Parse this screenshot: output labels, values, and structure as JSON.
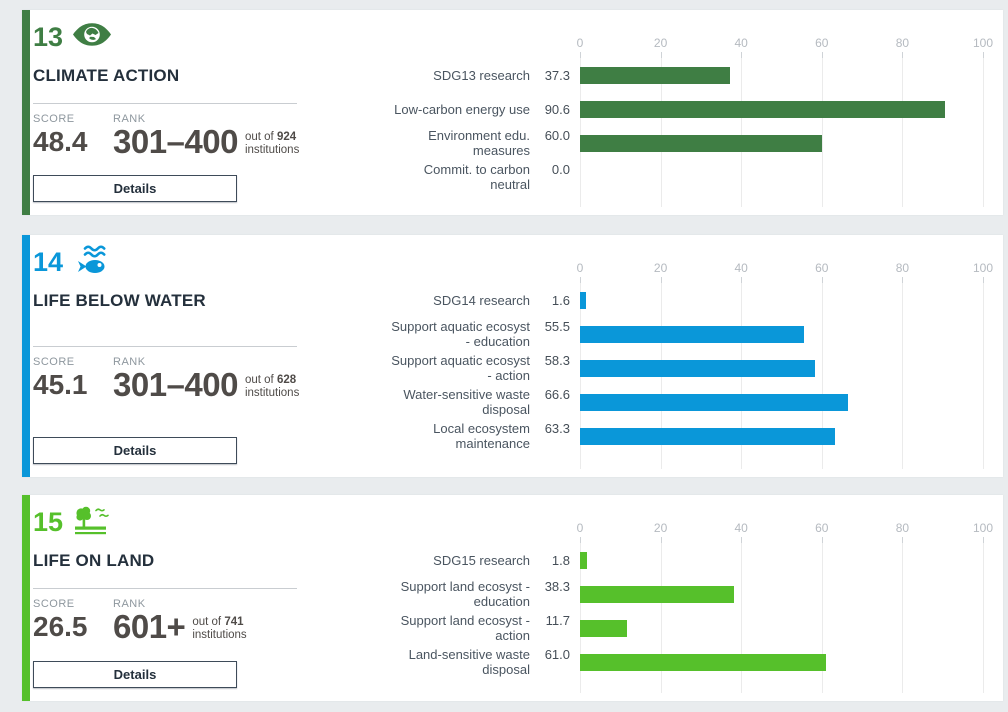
{
  "labels": {
    "score": "SCORE",
    "rank": "RANK",
    "details": "Details",
    "out_of_prefix": "out of",
    "out_of_suffix": "institutions"
  },
  "cards": [
    {
      "goal_number": "13",
      "icon": "sdg13-climate-eye-icon",
      "title": "CLIMATE ACTION",
      "accent_color": "#3F7E44",
      "score_value": "48.4",
      "rank_value": "301–400",
      "out_of_count": "924"
    },
    {
      "goal_number": "14",
      "icon": "sdg14-fish-waves-icon",
      "title": "LIFE BELOW WATER",
      "accent_color": "#0A97D9",
      "score_value": "45.1",
      "rank_value": "301–400",
      "out_of_count": "628"
    },
    {
      "goal_number": "15",
      "icon": "sdg15-tree-birds-icon",
      "title": "LIFE ON LAND",
      "accent_color": "#56C02B",
      "score_value": "26.5",
      "rank_value": "601+",
      "out_of_count": "741"
    }
  ],
  "chart_data": [
    {
      "type": "bar",
      "orientation": "horizontal",
      "categories": [
        "SDG13 research",
        "Low-carbon energy use",
        "Environment edu.\nmeasures",
        "Commit. to carbon\nneutral"
      ],
      "values": [
        37.3,
        90.6,
        60.0,
        0.0
      ],
      "bar_color": "#3F7E44",
      "xlim": [
        0,
        100
      ],
      "ticks": [
        0,
        20,
        40,
        60,
        80,
        100
      ],
      "axis_position": "top",
      "grid": true
    },
    {
      "type": "bar",
      "orientation": "horizontal",
      "categories": [
        "SDG14 research",
        "Support aquatic ecosyst\n- education",
        "Support aquatic ecosyst\n- action",
        "Water-sensitive waste\ndisposal",
        "Local ecosystem\nmaintenance"
      ],
      "values": [
        1.6,
        55.5,
        58.3,
        66.6,
        63.3
      ],
      "bar_color": "#0A97D9",
      "xlim": [
        0,
        100
      ],
      "ticks": [
        0,
        20,
        40,
        60,
        80,
        100
      ],
      "axis_position": "top",
      "grid": true
    },
    {
      "type": "bar",
      "orientation": "horizontal",
      "categories": [
        "SDG15 research",
        "Support land ecosyst -\neducation",
        "Support land ecosyst -\naction",
        "Land-sensitive waste\ndisposal"
      ],
      "values": [
        1.8,
        38.3,
        11.7,
        61.0
      ],
      "bar_color": "#56C02B",
      "xlim": [
        0,
        100
      ],
      "ticks": [
        0,
        20,
        40,
        60,
        80,
        100
      ],
      "axis_position": "top",
      "grid": true
    }
  ]
}
